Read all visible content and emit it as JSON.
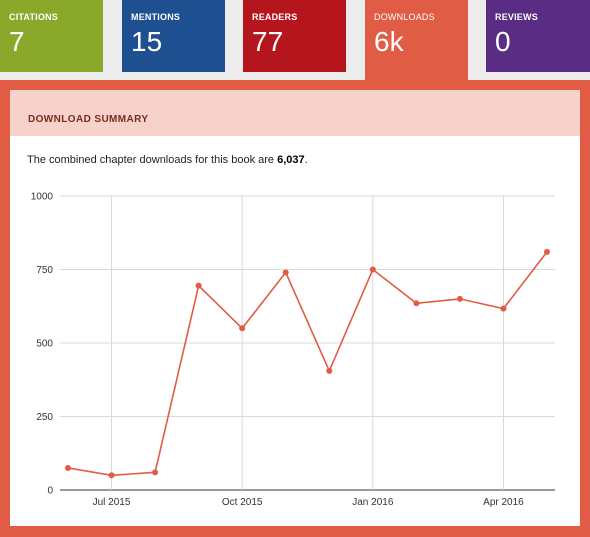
{
  "tabs": [
    {
      "label": "CITATIONS",
      "value": "7",
      "color": "#8aa82a"
    },
    {
      "label": "MENTIONS",
      "value": "15",
      "color": "#1d4f91"
    },
    {
      "label": "READERS",
      "value": "77",
      "color": "#b5161d"
    },
    {
      "label": "DOWNLOADS",
      "value": "6k",
      "color": "#e05c45",
      "active": true
    },
    {
      "label": "REVIEWS",
      "value": "0",
      "color": "#5b2c83"
    }
  ],
  "panel": {
    "title": "DOWNLOAD SUMMARY",
    "summary_prefix": "The combined chapter downloads for this book are ",
    "summary_value": "6,037",
    "summary_suffix": "."
  },
  "chart_data": {
    "type": "line",
    "title": "",
    "xlabel": "",
    "ylabel": "",
    "ylim": [
      0,
      1000
    ],
    "y_ticks": [
      "0",
      "250",
      "500",
      "750",
      "1000"
    ],
    "x_tick_labels": [
      "Jul 2015",
      "Oct 2015",
      "Jan 2016",
      "Apr 2016"
    ],
    "x": [
      "2015-06",
      "2015-07",
      "2015-08",
      "2015-09",
      "2015-10",
      "2015-11",
      "2015-12",
      "2016-01",
      "2016-02",
      "2016-03",
      "2016-04",
      "2016-05"
    ],
    "series": [
      {
        "values": [
          75,
          50,
          60,
          695,
          550,
          740,
          405,
          750,
          635,
          650,
          617,
          810
        ],
        "color": "#e05c45"
      }
    ],
    "grid": true
  }
}
